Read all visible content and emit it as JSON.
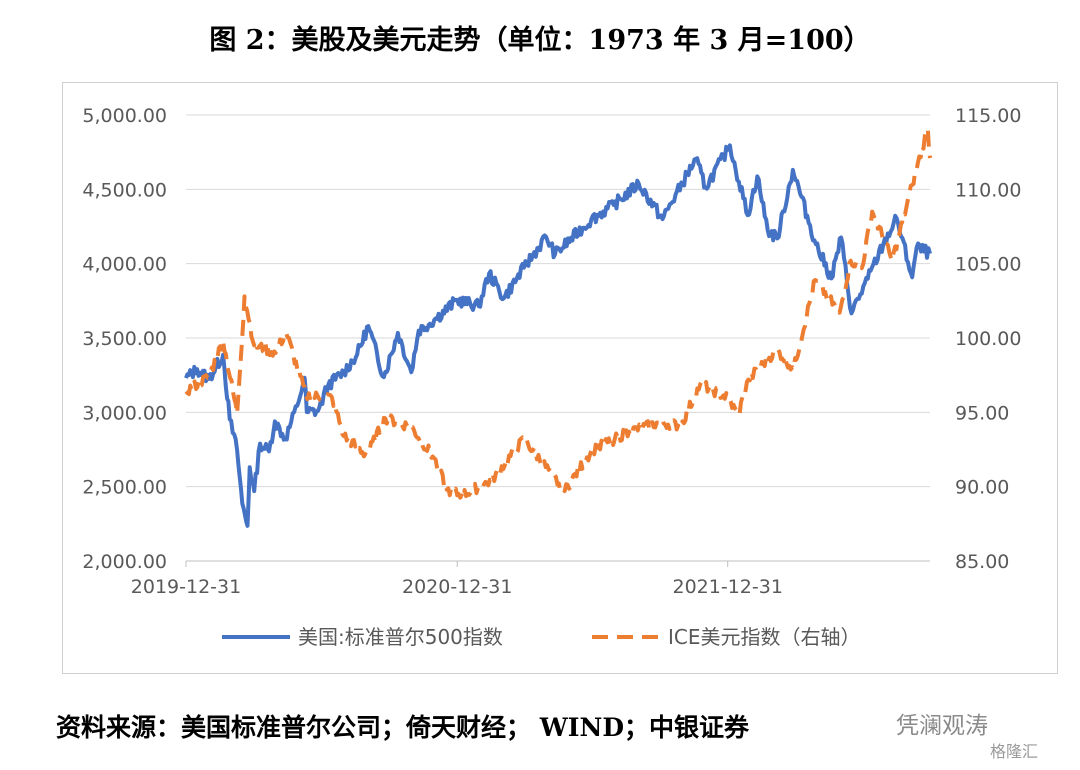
{
  "title": "图 2：美股及美元走势（单位：1973 年 3 月=100）",
  "source": "资料来源：美国标准普尔公司；倚天财经； WIND；中银证券",
  "watermark": "凭澜观涛",
  "watermark_small": "格隆汇",
  "colors": {
    "spx": "#4472C4",
    "dxy": "#ED7D31",
    "grid": "#d9d9d9",
    "text": "#595959"
  },
  "chart_data": {
    "type": "line",
    "title": "图 2：美股及美元走势（单位：1973 年 3 月=100）",
    "x_range": [
      "2019-12-31",
      "2022-09-30"
    ],
    "x_ticks": [
      "2019-12-31",
      "2020-12-31",
      "2021-12-31"
    ],
    "y_left": {
      "min": 2000,
      "max": 5000,
      "ticks": [
        "5,000.00",
        "4,500.00",
        "4,000.00",
        "3,500.00",
        "3,000.00",
        "2,500.00",
        "2,000.00"
      ]
    },
    "y_right": {
      "min": 85,
      "max": 115,
      "ticks": [
        "115.00",
        "110.00",
        "105.00",
        "100.00",
        "95.00",
        "90.00",
        "85.00"
      ]
    },
    "grid": "horizontal",
    "legend_position": "bottom",
    "series": [
      {
        "name": "美国:标准普尔500指数",
        "axis": "left",
        "style": "solid",
        "points": [
          [
            "2019-12-31",
            3230
          ],
          [
            "2020-01-15",
            3290
          ],
          [
            "2020-01-31",
            3225
          ],
          [
            "2020-02-19",
            3386
          ],
          [
            "2020-02-28",
            2954
          ],
          [
            "2020-03-09",
            2746
          ],
          [
            "2020-03-16",
            2386
          ],
          [
            "2020-03-23",
            2237
          ],
          [
            "2020-03-26",
            2630
          ],
          [
            "2020-04-01",
            2470
          ],
          [
            "2020-04-09",
            2790
          ],
          [
            "2020-04-21",
            2737
          ],
          [
            "2020-04-29",
            2939
          ],
          [
            "2020-05-13",
            2820
          ],
          [
            "2020-05-29",
            3044
          ],
          [
            "2020-06-08",
            3232
          ],
          [
            "2020-06-11",
            3002
          ],
          [
            "2020-06-26",
            3009
          ],
          [
            "2020-07-10",
            3185
          ],
          [
            "2020-07-31",
            3271
          ],
          [
            "2020-08-18",
            3390
          ],
          [
            "2020-09-02",
            3580
          ],
          [
            "2020-09-23",
            3237
          ],
          [
            "2020-10-12",
            3534
          ],
          [
            "2020-10-30",
            3270
          ],
          [
            "2020-11-09",
            3550
          ],
          [
            "2020-11-30",
            3621
          ],
          [
            "2020-12-31",
            3756
          ],
          [
            "2021-01-29",
            3714
          ],
          [
            "2021-02-12",
            3934
          ],
          [
            "2021-03-04",
            3768
          ],
          [
            "2021-03-31",
            3973
          ],
          [
            "2021-04-30",
            4181
          ],
          [
            "2021-05-12",
            4063
          ],
          [
            "2021-06-30",
            4297
          ],
          [
            "2021-07-30",
            4395
          ],
          [
            "2021-09-02",
            4537
          ],
          [
            "2021-10-04",
            4300
          ],
          [
            "2021-11-18",
            4705
          ],
          [
            "2021-12-01",
            4513
          ],
          [
            "2021-12-31",
            4766
          ],
          [
            "2022-01-03",
            4796
          ],
          [
            "2022-01-27",
            4326
          ],
          [
            "2022-02-09",
            4587
          ],
          [
            "2022-02-23",
            4225
          ],
          [
            "2022-03-08",
            4170
          ],
          [
            "2022-03-29",
            4631
          ],
          [
            "2022-04-29",
            4131
          ],
          [
            "2022-05-20",
            3901
          ],
          [
            "2022-06-02",
            4176
          ],
          [
            "2022-06-16",
            3666
          ],
          [
            "2022-07-08",
            3899
          ],
          [
            "2022-07-29",
            4130
          ],
          [
            "2022-08-16",
            4305
          ],
          [
            "2022-09-06",
            3908
          ],
          [
            "2022-09-12",
            4110
          ],
          [
            "2022-09-30",
            4067
          ]
        ]
      },
      {
        "name": "ICE美元指数（右轴）",
        "axis": "right",
        "style": "dashed",
        "points": [
          [
            "2019-12-31",
            96.4
          ],
          [
            "2020-01-31",
            97.4
          ],
          [
            "2020-02-19",
            99.8
          ],
          [
            "2020-03-09",
            94.9
          ],
          [
            "2020-03-19",
            102.8
          ],
          [
            "2020-04-01",
            99.5
          ],
          [
            "2020-04-30",
            99.0
          ],
          [
            "2020-05-14",
            100.4
          ],
          [
            "2020-06-10",
            96.1
          ],
          [
            "2020-07-15",
            96.0
          ],
          [
            "2020-07-31",
            93.4
          ],
          [
            "2020-08-31",
            92.1
          ],
          [
            "2020-09-25",
            94.6
          ],
          [
            "2020-10-30",
            94.0
          ],
          [
            "2020-11-30",
            91.9
          ],
          [
            "2020-12-17",
            89.8
          ],
          [
            "2021-01-06",
            89.4
          ],
          [
            "2021-02-15",
            90.4
          ],
          [
            "2021-03-31",
            93.2
          ],
          [
            "2021-05-25",
            89.7
          ],
          [
            "2021-06-30",
            92.4
          ],
          [
            "2021-08-20",
            93.7
          ],
          [
            "2021-09-30",
            94.3
          ],
          [
            "2021-10-29",
            94.1
          ],
          [
            "2021-11-24",
            96.9
          ],
          [
            "2021-12-31",
            95.97
          ],
          [
            "2022-01-14",
            94.8
          ],
          [
            "2022-01-28",
            97.2
          ],
          [
            "2022-03-07",
            99.2
          ],
          [
            "2022-03-30",
            97.9
          ],
          [
            "2022-04-28",
            103.9
          ],
          [
            "2022-05-31",
            101.7
          ],
          [
            "2022-06-15",
            105.2
          ],
          [
            "2022-06-30",
            104.7
          ],
          [
            "2022-07-14",
            108.5
          ],
          [
            "2022-08-10",
            105.2
          ],
          [
            "2022-09-06",
            110.3
          ],
          [
            "2022-09-27",
            114.1
          ],
          [
            "2022-09-30",
            112.1
          ]
        ]
      }
    ]
  }
}
